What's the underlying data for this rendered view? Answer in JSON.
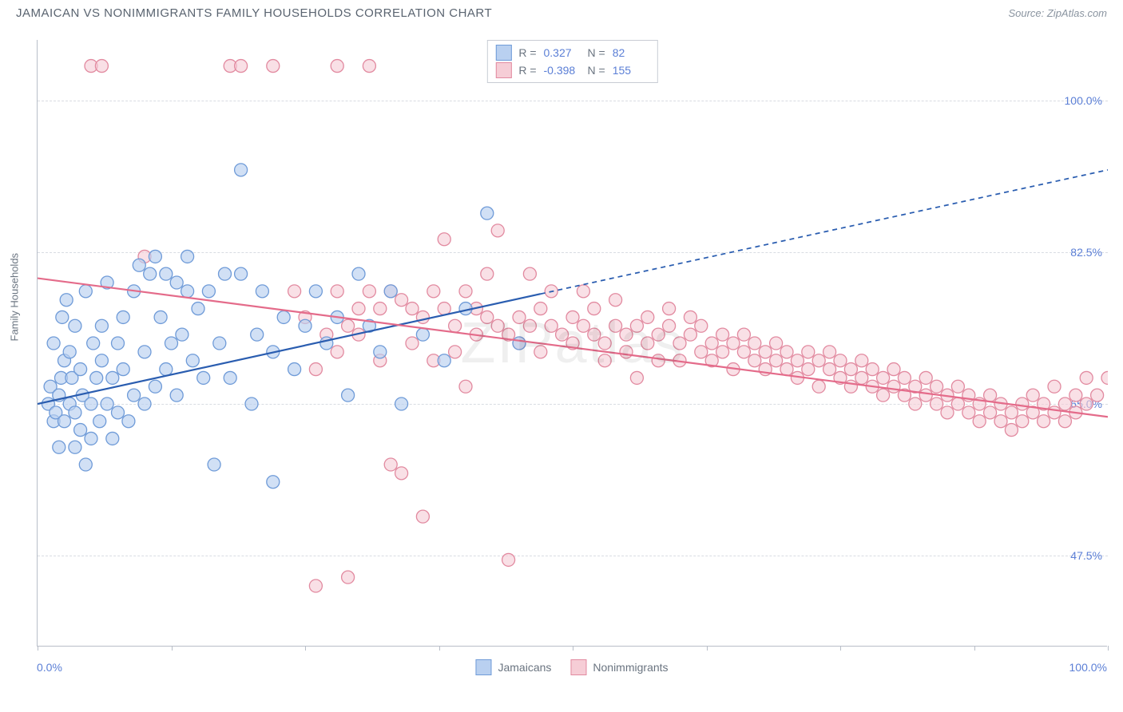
{
  "title": "JAMAICAN VS NONIMMIGRANTS FAMILY HOUSEHOLDS CORRELATION CHART",
  "source": "Source: ZipAtlas.com",
  "ylabel": "Family Households",
  "watermark": "ZIPatlas",
  "chart": {
    "type": "scatter-with-regression",
    "x_domain": [
      0,
      100
    ],
    "y_domain": [
      37,
      107
    ],
    "x_ticks": [
      "0.0%",
      "100.0%"
    ],
    "y_ticks": [
      {
        "v": 100.0,
        "label": "100.0%"
      },
      {
        "v": 82.5,
        "label": "82.5%"
      },
      {
        "v": 65.0,
        "label": "65.0%"
      },
      {
        "v": 47.5,
        "label": "47.5%"
      }
    ],
    "grid_color": "#d8dce2",
    "axis_color": "#b8bec8",
    "background": "#ffffff",
    "marker_radius": 8,
    "marker_stroke_width": 1.3,
    "line_width": 2.2,
    "series": [
      {
        "name": "Jamaicans",
        "fill": "#b9d0f0",
        "stroke": "#6f9bd8",
        "fill_opacity": 0.65,
        "line_color": "#2a5db0",
        "R": "0.327",
        "N": "82",
        "regression": {
          "x1": 0,
          "y1": 65,
          "x2": 100,
          "y2": 92,
          "solid_until_x": 47
        },
        "points": [
          [
            1,
            65
          ],
          [
            1.2,
            67
          ],
          [
            1.5,
            63
          ],
          [
            1.5,
            72
          ],
          [
            1.7,
            64
          ],
          [
            2,
            66
          ],
          [
            2,
            60
          ],
          [
            2.2,
            68
          ],
          [
            2.3,
            75
          ],
          [
            2.5,
            63
          ],
          [
            2.5,
            70
          ],
          [
            2.7,
            77
          ],
          [
            3,
            65
          ],
          [
            3,
            71
          ],
          [
            3.2,
            68
          ],
          [
            3.5,
            60
          ],
          [
            3.5,
            64
          ],
          [
            3.5,
            74
          ],
          [
            4,
            62
          ],
          [
            4,
            69
          ],
          [
            4.2,
            66
          ],
          [
            4.5,
            58
          ],
          [
            4.5,
            78
          ],
          [
            5,
            65
          ],
          [
            5,
            61
          ],
          [
            5.2,
            72
          ],
          [
            5.5,
            68
          ],
          [
            5.8,
            63
          ],
          [
            6,
            70
          ],
          [
            6,
            74
          ],
          [
            6.5,
            65
          ],
          [
            6.5,
            79
          ],
          [
            7,
            68
          ],
          [
            7,
            61
          ],
          [
            7.5,
            72
          ],
          [
            7.5,
            64
          ],
          [
            8,
            69
          ],
          [
            8,
            75
          ],
          [
            8.5,
            63
          ],
          [
            9,
            78
          ],
          [
            9,
            66
          ],
          [
            9.5,
            81
          ],
          [
            10,
            71
          ],
          [
            10,
            65
          ],
          [
            10.5,
            80
          ],
          [
            11,
            67
          ],
          [
            11,
            82
          ],
          [
            11.5,
            75
          ],
          [
            12,
            69
          ],
          [
            12,
            80
          ],
          [
            12.5,
            72
          ],
          [
            13,
            79
          ],
          [
            13,
            66
          ],
          [
            13.5,
            73
          ],
          [
            14,
            78
          ],
          [
            14,
            82
          ],
          [
            14.5,
            70
          ],
          [
            15,
            76
          ],
          [
            15.5,
            68
          ],
          [
            16,
            78
          ],
          [
            16.5,
            58
          ],
          [
            17,
            72
          ],
          [
            17.5,
            80
          ],
          [
            18,
            68
          ],
          [
            19,
            80
          ],
          [
            19,
            92
          ],
          [
            20,
            65
          ],
          [
            20.5,
            73
          ],
          [
            21,
            78
          ],
          [
            22,
            56
          ],
          [
            22,
            71
          ],
          [
            23,
            75
          ],
          [
            24,
            69
          ],
          [
            25,
            74
          ],
          [
            26,
            78
          ],
          [
            27,
            72
          ],
          [
            28,
            75
          ],
          [
            29,
            66
          ],
          [
            30,
            80
          ],
          [
            31,
            74
          ],
          [
            32,
            71
          ],
          [
            33,
            78
          ],
          [
            34,
            65
          ],
          [
            36,
            73
          ],
          [
            38,
            70
          ],
          [
            40,
            76
          ],
          [
            42,
            87
          ],
          [
            45,
            72
          ]
        ]
      },
      {
        "name": "Nonimmigrants",
        "fill": "#f6cdd6",
        "stroke": "#e28aa0",
        "fill_opacity": 0.62,
        "line_color": "#e46b8a",
        "R": "-0.398",
        "N": "155",
        "regression": {
          "x1": 0,
          "y1": 79.5,
          "x2": 100,
          "y2": 63.5,
          "solid_until_x": 100
        },
        "points": [
          [
            5,
            104
          ],
          [
            6,
            104
          ],
          [
            10,
            82
          ],
          [
            18,
            104
          ],
          [
            19,
            104
          ],
          [
            22,
            104
          ],
          [
            24,
            78
          ],
          [
            25,
            75
          ],
          [
            26,
            69
          ],
          [
            26,
            44
          ],
          [
            27,
            73
          ],
          [
            28,
            78
          ],
          [
            28,
            104
          ],
          [
            28,
            71
          ],
          [
            29,
            74
          ],
          [
            29,
            45
          ],
          [
            30,
            76
          ],
          [
            30,
            73
          ],
          [
            31,
            78
          ],
          [
            31,
            104
          ],
          [
            32,
            76
          ],
          [
            32,
            70
          ],
          [
            33,
            78
          ],
          [
            33,
            58
          ],
          [
            34,
            77
          ],
          [
            34,
            57
          ],
          [
            35,
            76
          ],
          [
            35,
            72
          ],
          [
            36,
            75
          ],
          [
            36,
            52
          ],
          [
            37,
            78
          ],
          [
            37,
            70
          ],
          [
            38,
            76
          ],
          [
            38,
            84
          ],
          [
            39,
            74
          ],
          [
            39,
            71
          ],
          [
            40,
            78
          ],
          [
            40,
            67
          ],
          [
            41,
            76
          ],
          [
            41,
            73
          ],
          [
            42,
            75
          ],
          [
            42,
            80
          ],
          [
            43,
            74
          ],
          [
            43,
            85
          ],
          [
            44,
            73
          ],
          [
            44,
            47
          ],
          [
            45,
            75
          ],
          [
            45,
            72
          ],
          [
            46,
            74
          ],
          [
            46,
            80
          ],
          [
            47,
            76
          ],
          [
            47,
            71
          ],
          [
            48,
            74
          ],
          [
            48,
            78
          ],
          [
            49,
            73
          ],
          [
            50,
            75
          ],
          [
            50,
            72
          ],
          [
            51,
            74
          ],
          [
            51,
            78
          ],
          [
            52,
            73
          ],
          [
            52,
            76
          ],
          [
            53,
            72
          ],
          [
            53,
            70
          ],
          [
            54,
            74
          ],
          [
            54,
            77
          ],
          [
            55,
            73
          ],
          [
            55,
            71
          ],
          [
            56,
            74
          ],
          [
            56,
            68
          ],
          [
            57,
            72
          ],
          [
            57,
            75
          ],
          [
            58,
            73
          ],
          [
            58,
            70
          ],
          [
            59,
            74
          ],
          [
            59,
            76
          ],
          [
            60,
            72
          ],
          [
            60,
            70
          ],
          [
            61,
            73
          ],
          [
            61,
            75
          ],
          [
            62,
            71
          ],
          [
            62,
            74
          ],
          [
            63,
            72
          ],
          [
            63,
            70
          ],
          [
            64,
            73
          ],
          [
            64,
            71
          ],
          [
            65,
            72
          ],
          [
            65,
            69
          ],
          [
            66,
            71
          ],
          [
            66,
            73
          ],
          [
            67,
            70
          ],
          [
            67,
            72
          ],
          [
            68,
            71
          ],
          [
            68,
            69
          ],
          [
            69,
            70
          ],
          [
            69,
            72
          ],
          [
            70,
            69
          ],
          [
            70,
            71
          ],
          [
            71,
            70
          ],
          [
            71,
            68
          ],
          [
            72,
            69
          ],
          [
            72,
            71
          ],
          [
            73,
            70
          ],
          [
            73,
            67
          ],
          [
            74,
            69
          ],
          [
            74,
            71
          ],
          [
            75,
            68
          ],
          [
            75,
            70
          ],
          [
            76,
            69
          ],
          [
            76,
            67
          ],
          [
            77,
            68
          ],
          [
            77,
            70
          ],
          [
            78,
            67
          ],
          [
            78,
            69
          ],
          [
            79,
            68
          ],
          [
            79,
            66
          ],
          [
            80,
            67
          ],
          [
            80,
            69
          ],
          [
            81,
            66
          ],
          [
            81,
            68
          ],
          [
            82,
            67
          ],
          [
            82,
            65
          ],
          [
            83,
            66
          ],
          [
            83,
            68
          ],
          [
            84,
            65
          ],
          [
            84,
            67
          ],
          [
            85,
            66
          ],
          [
            85,
            64
          ],
          [
            86,
            65
          ],
          [
            86,
            67
          ],
          [
            87,
            64
          ],
          [
            87,
            66
          ],
          [
            88,
            65
          ],
          [
            88,
            63
          ],
          [
            89,
            64
          ],
          [
            89,
            66
          ],
          [
            90,
            63
          ],
          [
            90,
            65
          ],
          [
            91,
            64
          ],
          [
            91,
            62
          ],
          [
            92,
            65
          ],
          [
            92,
            63
          ],
          [
            93,
            64
          ],
          [
            93,
            66
          ],
          [
            94,
            63
          ],
          [
            94,
            65
          ],
          [
            95,
            64
          ],
          [
            95,
            67
          ],
          [
            96,
            63
          ],
          [
            96,
            65
          ],
          [
            97,
            64
          ],
          [
            97,
            66
          ],
          [
            98,
            65
          ],
          [
            98,
            68
          ],
          [
            99,
            66
          ],
          [
            100,
            68
          ]
        ]
      }
    ]
  },
  "legend": {
    "items": [
      {
        "label": "Jamaicans",
        "fill": "#b9d0f0",
        "stroke": "#6f9bd8"
      },
      {
        "label": "Nonimmigrants",
        "fill": "#f6cdd6",
        "stroke": "#e28aa0"
      }
    ]
  }
}
